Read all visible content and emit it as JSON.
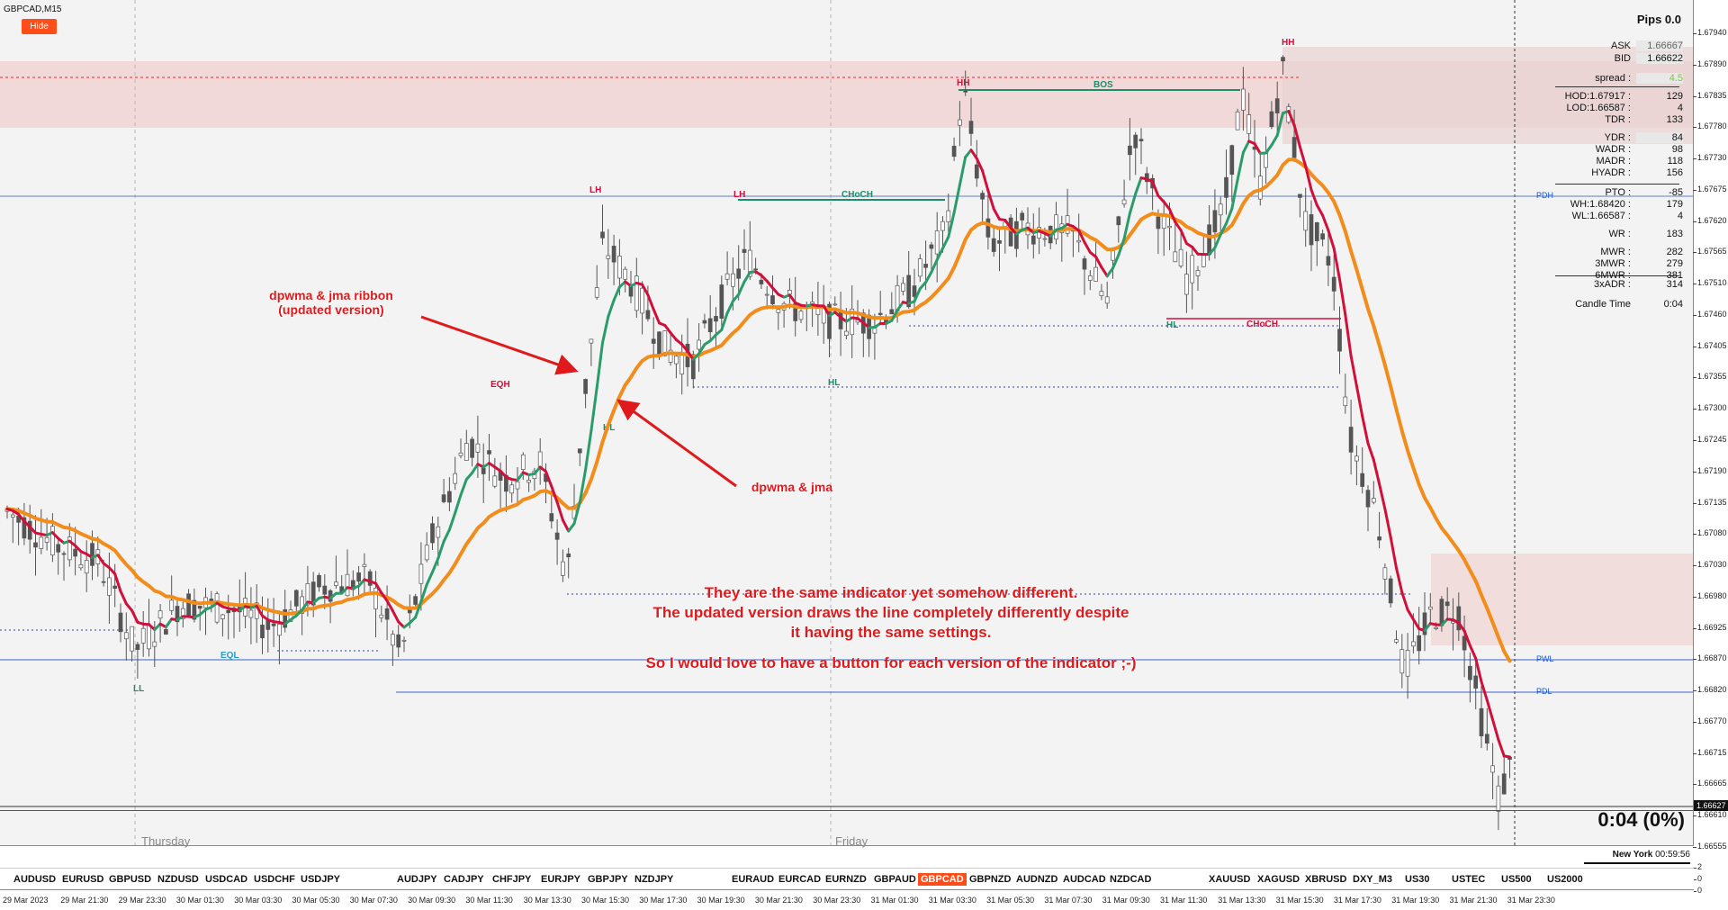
{
  "window": {
    "title": "GBPCAD,M15",
    "hide_label": "Hide"
  },
  "info_panel": {
    "title": "Pips 0.0",
    "ask_label": "ASK",
    "ask_value": "1.66667",
    "bid_label": "BID",
    "bid_value": "1.66622",
    "spread_label": "spread :",
    "spread_value": "4.5",
    "rows": [
      {
        "k": "HOD:1.67917 :",
        "v": "129"
      },
      {
        "k": "LOD:1.66587 :",
        "v": "4"
      },
      {
        "k": "TDR :",
        "v": "133"
      },
      {
        "k": "YDR :",
        "v": "84"
      },
      {
        "k": "WADR :",
        "v": "98"
      },
      {
        "k": "MADR :",
        "v": "118"
      },
      {
        "k": "HYADR :",
        "v": "156"
      },
      {
        "k": "PTO :",
        "v": "-85"
      },
      {
        "k": "WH:1.68420 :",
        "v": "179"
      },
      {
        "k": "WL:1.66587 :",
        "v": "4"
      },
      {
        "k": "WR :",
        "v": "183"
      },
      {
        "k": "MWR :",
        "v": "282"
      },
      {
        "k": "3MWR :",
        "v": "279"
      },
      {
        "k": "6MWR :",
        "v": "381"
      },
      {
        "k": "3xADR :",
        "v": "314"
      },
      {
        "k": "Candle Time",
        "v": "0:04"
      }
    ]
  },
  "countdown": "0:04 (0%)",
  "clock": {
    "city": "New York",
    "time": "00:59:56"
  },
  "day_labels": [
    "Thursday",
    "Friday"
  ],
  "zone_labels": {
    "pdh": "PDH",
    "pwl": "PWL",
    "pdl": "PDL"
  },
  "structure_labels": [
    "HH",
    "BOS",
    "LH",
    "CHoCH",
    "HL",
    "LL",
    "EQL",
    "EQH",
    "CHoCH",
    "HH",
    "HL",
    "CHoCH"
  ],
  "annotations": {
    "ribbon": "dpwma & jma ribbon\n(updated version)",
    "classic": "dpwma & jma",
    "message_line1": "They are the same indicator yet somehow different.",
    "message_line2": "The updated version draws the line completely differently despite",
    "message_line3": "it having the same settings.",
    "message_line4": "So I would love to have a button for each version of the indicator ;-)"
  },
  "price_axis": {
    "ticks": [
      "1.67940",
      "1.67890",
      "1.67835",
      "1.67780",
      "1.67730",
      "1.67675",
      "1.67620",
      "1.67565",
      "1.67510",
      "1.67460",
      "1.67405",
      "1.67355",
      "1.67300",
      "1.67245",
      "1.67190",
      "1.67135",
      "1.67080",
      "1.67030",
      "1.66980",
      "1.66925",
      "1.66870",
      "1.66820",
      "1.66770",
      "1.66715",
      "1.66665",
      "1.66610",
      "1.66555"
    ],
    "current": "1.66627",
    "sub_ticks": [
      "2",
      "0",
      "0"
    ]
  },
  "symbols": [
    "AUDUSD",
    "EURUSD",
    "GBPUSD",
    "NZDUSD",
    "USDCAD",
    "USDCHF",
    "USDJPY",
    "AUDJPY",
    "CADJPY",
    "CHFJPY",
    "EURJPY",
    "GBPJPY",
    "NZDJPY",
    "EURAUD",
    "EURCAD",
    "EURNZD",
    "GBPAUD",
    "GBPCAD",
    "GBPNZD",
    "AUDNZD",
    "AUDCAD",
    "NZDCAD",
    "XAUUSD",
    "XAGUSD",
    "XBRUSD",
    "DXY_M3",
    "US30",
    "USTEC",
    "US500",
    "US2000"
  ],
  "active_symbol": "GBPCAD",
  "time_axis": [
    "29 Mar 2023",
    "29 Mar 21:30",
    "29 Mar 23:30",
    "30 Mar 01:30",
    "30 Mar 03:30",
    "30 Mar 05:30",
    "30 Mar 07:30",
    "30 Mar 09:30",
    "30 Mar 11:30",
    "30 Mar 13:30",
    "30 Mar 15:30",
    "30 Mar 17:30",
    "30 Mar 19:30",
    "30 Mar 21:30",
    "30 Mar 23:30",
    "31 Mar 01:30",
    "31 Mar 03:30",
    "31 Mar 05:30",
    "31 Mar 07:30",
    "31 Mar 09:30",
    "31 Mar 11:30",
    "31 Mar 13:30",
    "31 Mar 15:30",
    "31 Mar 17:30",
    "31 Mar 19:30",
    "31 Mar 21:30",
    "31 Mar 23:30"
  ],
  "colors": {
    "jma": "#f28c1b",
    "dpwma_up": "#2a9b6a",
    "dpwma_down": "#d0103a",
    "annotation": "#e0191c",
    "zone": "#f2c8c8",
    "level": "#1a56c8"
  }
}
